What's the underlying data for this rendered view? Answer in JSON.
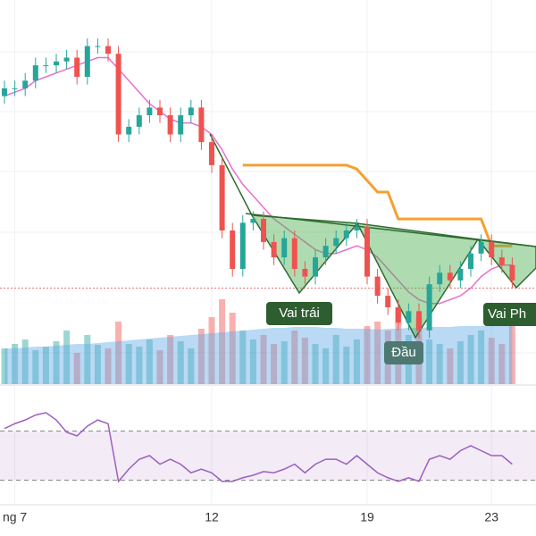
{
  "chart_data": {
    "type": "candlestick",
    "categories": [
      null,
      "ng 7",
      null,
      null,
      null,
      null,
      null,
      null,
      null,
      null,
      null,
      null,
      null,
      null,
      null,
      null,
      null,
      null,
      null,
      null,
      "12",
      null,
      null,
      null,
      null,
      null,
      null,
      null,
      null,
      null,
      null,
      null,
      null,
      null,
      null,
      "19",
      null,
      null,
      null,
      null,
      null,
      null,
      null,
      null,
      null,
      null,
      null,
      "23",
      null,
      null
    ],
    "open": [
      75,
      77,
      77,
      79,
      83,
      83,
      84,
      85,
      80,
      88,
      88,
      86,
      65,
      67,
      70,
      72,
      70,
      65,
      70,
      72,
      63,
      57,
      40,
      30,
      42,
      43,
      37,
      33,
      38,
      30,
      28,
      33,
      36,
      38,
      40,
      41,
      28,
      23,
      20,
      16,
      19,
      14,
      26,
      29,
      27,
      30,
      34,
      37,
      33,
      31
    ],
    "high": [
      79,
      79,
      81,
      85,
      85,
      86,
      87,
      87,
      90,
      90,
      90,
      88,
      69,
      72,
      74,
      74,
      72,
      72,
      74,
      74,
      65,
      59,
      42,
      44,
      45,
      45,
      39,
      40,
      40,
      32,
      35,
      38,
      40,
      42,
      43,
      43,
      30,
      25,
      22,
      21,
      21,
      28,
      31,
      31,
      32,
      36,
      39,
      39,
      35,
      33
    ],
    "low": [
      73,
      75,
      75,
      77,
      81,
      81,
      82,
      78,
      78,
      86,
      84,
      63,
      63,
      65,
      68,
      68,
      63,
      63,
      68,
      61,
      55,
      38,
      28,
      28,
      40,
      35,
      31,
      31,
      28,
      26,
      26,
      31,
      34,
      36,
      38,
      26,
      21,
      18,
      14,
      14,
      12,
      12,
      24,
      25,
      25,
      28,
      32,
      31,
      29,
      25
    ],
    "close": [
      77,
      77,
      79,
      83,
      83,
      84,
      85,
      80,
      88,
      88,
      86,
      65,
      67,
      70,
      72,
      70,
      65,
      70,
      72,
      63,
      57,
      40,
      30,
      42,
      43,
      37,
      33,
      38,
      30,
      28,
      33,
      36,
      38,
      40,
      41,
      28,
      23,
      20,
      16,
      19,
      14,
      26,
      29,
      27,
      30,
      34,
      37,
      33,
      31,
      27
    ],
    "up_color": "#26a69a",
    "down_color": "#ef5350",
    "ylim": [
      0,
      100
    ],
    "ma": {
      "color": "#e96fd0",
      "values": [
        75,
        76,
        77,
        79,
        80,
        81,
        82,
        83,
        84,
        85,
        85,
        82,
        79,
        76,
        73,
        71,
        69,
        68,
        68,
        67,
        65,
        61,
        56,
        52,
        49,
        46,
        43,
        41,
        39,
        37,
        35,
        34,
        34,
        35,
        36,
        35,
        33,
        30,
        27,
        24,
        22,
        21,
        21,
        22,
        23,
        25,
        28,
        30,
        31,
        31
      ]
    },
    "baseline": {
      "color": "#f5a030",
      "values": [
        null,
        null,
        null,
        null,
        null,
        null,
        null,
        null,
        null,
        null,
        null,
        null,
        null,
        null,
        null,
        null,
        null,
        null,
        null,
        null,
        null,
        null,
        null,
        57,
        57,
        57,
        57,
        57,
        57,
        57,
        57,
        57,
        57,
        57,
        56,
        53,
        50,
        50,
        43,
        43,
        43,
        43,
        43,
        43,
        43,
        43,
        43,
        36,
        36,
        36
      ]
    },
    "ref_line": 25,
    "ref_color": "#e57373",
    "volume": [
      40,
      45,
      50,
      38,
      42,
      48,
      60,
      35,
      55,
      44,
      40,
      70,
      45,
      42,
      50,
      38,
      55,
      48,
      40,
      62,
      75,
      95,
      80,
      60,
      50,
      55,
      45,
      48,
      60,
      52,
      45,
      40,
      55,
      42,
      50,
      65,
      70,
      60,
      85,
      55,
      75,
      50,
      45,
      40,
      48,
      55,
      60,
      52,
      45,
      70
    ],
    "volume_ma": [
      40,
      40,
      41,
      42,
      42,
      43,
      44,
      45,
      45,
      46,
      47,
      48,
      49,
      50,
      51,
      52,
      53,
      54,
      55,
      56,
      57,
      58,
      59,
      60,
      61,
      62,
      63,
      63,
      64,
      64,
      64,
      63,
      63,
      62,
      62,
      62,
      61,
      62,
      62,
      63,
      63,
      64,
      64,
      64,
      65,
      65,
      65,
      65,
      65,
      65
    ],
    "vlim": [
      0,
      100
    ],
    "rsi": {
      "color": "#9c5fc0",
      "values": [
        72,
        76,
        79,
        83,
        85,
        79,
        69,
        66,
        74,
        79,
        76,
        29,
        39,
        47,
        50,
        43,
        47,
        43,
        36,
        39,
        36,
        29,
        29,
        32,
        34,
        37,
        36,
        39,
        43,
        36,
        43,
        47,
        47,
        43,
        50,
        43,
        36,
        32,
        29,
        32,
        29,
        47,
        50,
        47,
        54,
        58,
        54,
        50,
        50,
        43
      ]
    },
    "rsi_levels": [
      70,
      30
    ],
    "rsi_lim": [
      10,
      90
    ],
    "annotations": [
      "Vai trái",
      "Đầu",
      "Vai Ph"
    ]
  }
}
